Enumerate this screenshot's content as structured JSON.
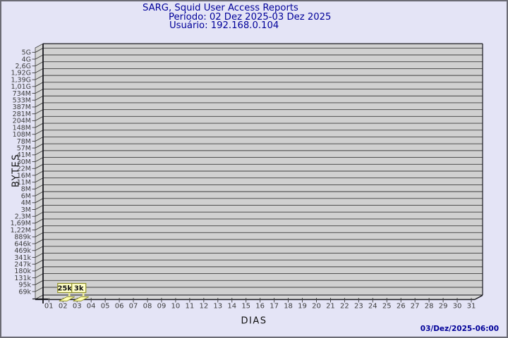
{
  "chart_data": {
    "type": "bar",
    "title": "SARG, Squid User Access Reports",
    "period_line": "Período: 02 Dez 2025-03 Dez 2025",
    "user_line": "Usuário: 192.168.0.104",
    "xlabel": "DIAS",
    "ylabel": "BYTES",
    "timestamp": "03/Dez/2025-06:00",
    "y_scale": "logarithmic",
    "y_tick_labels": [
      "5G",
      "4G",
      "2,6G",
      "1,92G",
      "1,39G",
      "1,01G",
      "734M",
      "533M",
      "387M",
      "281M",
      "204M",
      "148M",
      "108M",
      "78M",
      "57M",
      "41M",
      "30M",
      "22M",
      "16M",
      "11M",
      "8M",
      "6M",
      "4M",
      "3M",
      "2,3M",
      "1,69M",
      "1,22M",
      "889k",
      "646k",
      "469k",
      "341k",
      "247k",
      "180k",
      "131k",
      "95k",
      "69k"
    ],
    "x_tick_labels": [
      "01",
      "02",
      "03",
      "04",
      "05",
      "06",
      "07",
      "08",
      "09",
      "10",
      "11",
      "12",
      "13",
      "14",
      "15",
      "16",
      "17",
      "18",
      "19",
      "20",
      "21",
      "22",
      "23",
      "24",
      "25",
      "26",
      "27",
      "28",
      "29",
      "30",
      "31"
    ],
    "bars": [
      {
        "day": "02",
        "label": "25k",
        "value_bytes": 25000
      },
      {
        "day": "03",
        "label": "3k",
        "value_bytes": 3000
      }
    ],
    "ylim_labels": [
      "69k",
      "5G"
    ],
    "grid": "horizontal",
    "legend": "none",
    "colors": {
      "background": "#e4e4f6",
      "plot_bg": "#d0d0d0",
      "wall": "#d6d6d6",
      "grid": "#3e3e3e",
      "border_dark": "#17171d",
      "axis_text": "#3c3c3c",
      "title_text": "#000099",
      "bar_fill": "#ffffb2",
      "bar_border": "#90902a",
      "label_box_fill": "#ffffc8",
      "connector": "#f2f2a0"
    }
  }
}
